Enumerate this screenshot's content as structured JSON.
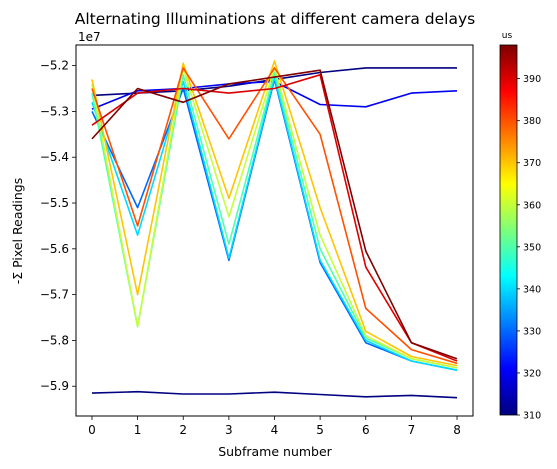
{
  "chart_data": {
    "type": "line",
    "title": "Alternating Illuminations at different camera delays",
    "xlabel": "Subframe number",
    "ylabel": "-Σ Pixel Readings",
    "y_offset_label": "1e7",
    "x": [
      0,
      1,
      2,
      3,
      4,
      5,
      6,
      7,
      8
    ],
    "xlim": [
      -0.35,
      8.35
    ],
    "ylim": [
      -59.65,
      -51.55
    ],
    "x_ticks": [
      "0",
      "1",
      "2",
      "3",
      "4",
      "5",
      "6",
      "7",
      "8"
    ],
    "y_ticks": [
      -5.9,
      -5.8,
      -5.7,
      -5.6,
      -5.5,
      -5.4,
      -5.3,
      -5.2
    ],
    "y_tick_labels": [
      "−5.9",
      "−5.8",
      "−5.7",
      "−5.6",
      "−5.5",
      "−5.4",
      "−5.3",
      "−5.2"
    ],
    "y_unit_scale": 10000000,
    "grid": false,
    "colormap": "jet",
    "colorbar": {
      "label": "us",
      "range": [
        310,
        398
      ],
      "ticks": [
        "310",
        "320",
        "330",
        "340",
        "350",
        "360",
        "370",
        "380",
        "390"
      ]
    },
    "series_count": 89,
    "delay_start": 310,
    "delay_step": 1,
    "series": [
      {
        "delay": 310,
        "values": [
          -52.65,
          -52.6,
          -52.55,
          -52.45,
          -52.3,
          -52.15,
          -52.05,
          -52.05,
          -52.05
        ]
      },
      {
        "delay": 310,
        "values": [
          -59.15,
          -59.12,
          -59.17,
          -59.17,
          -59.13,
          -59.18,
          -59.23,
          -59.2,
          -59.25
        ]
      },
      {
        "delay": 320,
        "values": [
          -52.95,
          -52.55,
          -52.5,
          -52.4,
          -52.35,
          -52.85,
          -52.9,
          -52.6,
          -52.55
        ]
      },
      {
        "delay": 330,
        "values": [
          -53.0,
          -55.1,
          -52.5,
          -56.25,
          -52.3,
          -56.3,
          -58.05,
          -58.45,
          -58.65
        ]
      },
      {
        "delay": 340,
        "values": [
          -52.8,
          -55.7,
          -52.35,
          -56.2,
          -52.25,
          -56.25,
          -58.0,
          -58.45,
          -58.65
        ]
      },
      {
        "delay": 350,
        "values": [
          -52.6,
          -57.7,
          -52.2,
          -55.9,
          -52.15,
          -56.0,
          -57.95,
          -58.4,
          -58.6
        ]
      },
      {
        "delay": 360,
        "values": [
          -52.4,
          -57.7,
          -52.05,
          -55.3,
          -52.05,
          -55.7,
          -57.9,
          -58.4,
          -58.6
        ]
      },
      {
        "delay": 370,
        "values": [
          -52.3,
          -57.0,
          -51.95,
          -54.9,
          -51.9,
          -55.1,
          -57.8,
          -58.35,
          -58.55
        ]
      },
      {
        "delay": 380,
        "values": [
          -52.5,
          -55.5,
          -52.05,
          -53.6,
          -52.05,
          -53.5,
          -57.3,
          -58.2,
          -58.5
        ]
      },
      {
        "delay": 390,
        "values": [
          -53.3,
          -52.6,
          -52.5,
          -52.6,
          -52.5,
          -52.2,
          -56.4,
          -58.05,
          -58.45
        ]
      },
      {
        "delay": 398,
        "values": [
          -53.6,
          -52.5,
          -52.8,
          -52.4,
          -52.25,
          -52.1,
          -56.05,
          -58.05,
          -58.4
        ]
      }
    ]
  }
}
